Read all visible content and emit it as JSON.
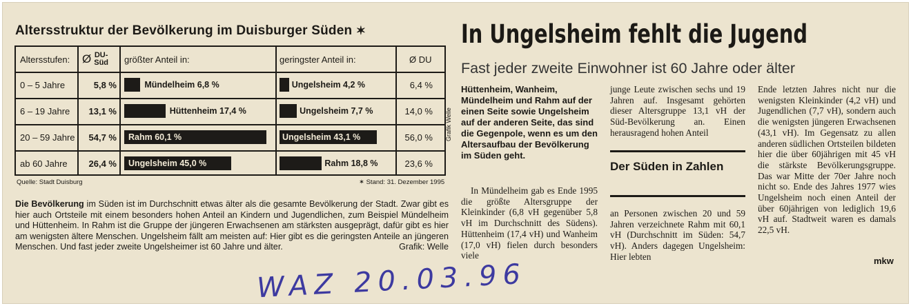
{
  "chart": {
    "title": "Altersstruktur der Bevölkerung im Duisburger Süden",
    "title_star": "✶",
    "headers": {
      "ages": "Altersstufen:",
      "du_sued_sym": "Ø",
      "du_sued_line1": "DU-",
      "du_sued_line2": "Süd",
      "greatest": "größter Anteil in:",
      "smallest": "geringster Anteil in:",
      "du": "Ø DU"
    },
    "source": "Quelle: Stadt Duisburg",
    "stand": "✶ Stand: 31. Dezember 1995",
    "credit_vertical": "Grafik Welle"
  },
  "chart_data": {
    "type": "table",
    "columns": [
      "Altersstufen:",
      "Ø DU-Süd",
      "größter Anteil in:",
      "geringster Anteil in:",
      "Ø DU"
    ],
    "rows": [
      {
        "age": "0 – 5 Jahre",
        "du_sued": "5,8 %",
        "max_label": "Mündelheim 6,8 %",
        "max_value": 6.8,
        "min_label": "Ungelsheim 4,2 %",
        "min_value": 4.2,
        "du": "6,4 %"
      },
      {
        "age": "6 – 19 Jahre",
        "du_sued": "13,1 %",
        "max_label": "Hüttenheim 17,4 %",
        "max_value": 17.4,
        "min_label": "Ungelsheim 7,7 %",
        "min_value": 7.7,
        "du": "14,0 %"
      },
      {
        "age": "20 – 59 Jahre",
        "du_sued": "54,7 %",
        "max_label": "Rahm 60,1 %",
        "max_value": 60.1,
        "min_label": "Ungelsheim 43,1 %",
        "min_value": 43.1,
        "du": "56,0 %"
      },
      {
        "age": "ab 60 Jahre",
        "du_sued": "26,4 %",
        "max_label": "Ungelsheim 45,0 %",
        "max_value": 45.0,
        "min_label": "Rahm 18,8 %",
        "min_value": 18.8,
        "du": "23,6 %"
      }
    ]
  },
  "intro": {
    "lead_bold": "Die Bevölkerung",
    "body": " im Süden ist im Durchschnitt etwas älter als die gesamte Bevölkerung der Stadt. Zwar gibt es hier auch Ortsteile mit einem besonders hohen Anteil an Kindern und Jugendlichen, zum Beispiel Mündelheim und Hüttenheim. In Rahm ist die Gruppe der jüngeren Erwachsenen am stärksten ausgeprägt, dafür gibt es hier am wenigsten ältere Menschen. Ungelsheim fällt am meisten auf: Hier gibt es die geringsten Anteile an jüngeren Menschen. Und fast jeder zweite Ungelsheimer ist 60 Jahre und älter.",
    "credit": "Grafik: Welle"
  },
  "handwriting": "WAZ 20.03.96",
  "article": {
    "headline": "In Ungelsheim fehlt die Jugend",
    "subhead": "Fast jeder zweite Einwohner ist 60 Jahre oder älter",
    "lead": "Hüttenheim, Wanheim, Mündelheim und Rahm auf der einen Seite sowie Ungelsheim auf der anderen Seite, das sind die Gegenpole, wenn es um den Altersaufbau der Bevölkerung im Süden geht.",
    "col_a": "In Mündelheim gab es Ende 1995 die größte Altersgruppe der Kleinkinder (6,8 vH gegenüber 5,8 vH im Durchschnitt des Südens). Hüttenheim (17,4 vH) und Wanheim (17,0 vH) fielen durch besonders viele",
    "col_b1": "junge Leute zwischen sechs und 19 Jahren auf. Insgesamt gehörten dieser Altersgruppe 13,1 vH der Süd-Bevölkerung an. Einen herausragend hohen Anteil",
    "box_title": "Der Süden in Zahlen",
    "col_b2": "an Personen zwischen 20 und 59 Jahren verzeichnete Rahm mit 60,1 vH (Durchschnitt im Süden: 54,7 vH). Anders dagegen Ungelsheim: Hier lebten",
    "col_c": "Ende letzten Jahres nicht nur die wenigsten Kleinkinder (4,2 vH) und Jugendlichen (7,7 vH), sondern auch die wenigsten jüngeren Erwachsenen (43,1 vH). Im Gegensatz zu allen anderen südlichen Ortsteilen bildeten hier die über 60jährigen mit 45 vH die stärkste Bevölkerungsgruppe. Das war Mitte der 70er Jahre noch nicht so. Ende des Jahres 1977 wies Ungelsheim noch einen Anteil der über 60jährigen von lediglich 19,6 vH auf. Stadtweit waren es damals 22,5 vH.",
    "signature": "mkw"
  },
  "colors": {
    "paper": "#ece4cf",
    "ink": "#1c1a16",
    "pen": "#3d3aa0"
  }
}
